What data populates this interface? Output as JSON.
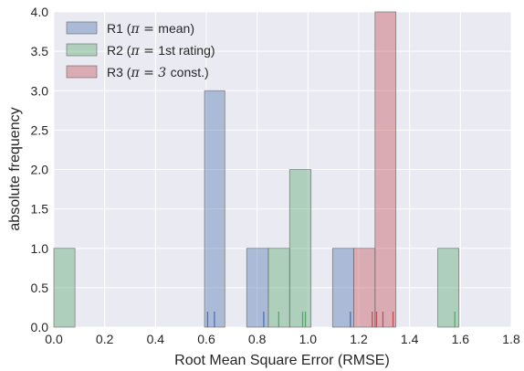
{
  "chart_data": {
    "type": "bar",
    "subtype": "histogram",
    "xlabel": "Root Mean Square Error (RMSE)",
    "ylabel": "absolute frequency",
    "xlim": [
      0.0,
      1.8
    ],
    "ylim": [
      0.0,
      4.0
    ],
    "xticks": [
      "0.0",
      "0.2",
      "0.4",
      "0.6",
      "0.8",
      "1.0",
      "1.2",
      "1.4",
      "1.6",
      "1.8"
    ],
    "yticks": [
      "0.0",
      "0.5",
      "1.0",
      "1.5",
      "2.0",
      "2.5",
      "3.0",
      "3.5",
      "4.0"
    ],
    "grid": true,
    "legend_position": "top-left",
    "series": [
      {
        "name": "R1",
        "legend_prefix": "R1 (",
        "legend_math": "π = ",
        "legend_rest": "mean)",
        "color": "#4c72b0",
        "bins": [
          {
            "x0": 0.593,
            "x1": 0.673,
            "count": 3
          },
          {
            "x0": 0.759,
            "x1": 0.844,
            "count": 1
          },
          {
            "x0": 1.097,
            "x1": 1.18,
            "count": 1
          }
        ],
        "rug": [
          0.605,
          0.632,
          0.826,
          1.167
        ]
      },
      {
        "name": "R2",
        "legend_prefix": "R2 (",
        "legend_math": "π = ",
        "legend_rest": "1st rating)",
        "color": "#55a868",
        "bins": [
          {
            "x0": 0.0,
            "x1": 0.083,
            "count": 1
          },
          {
            "x0": 0.844,
            "x1": 0.928,
            "count": 1
          },
          {
            "x0": 0.928,
            "x1": 1.012,
            "count": 2
          },
          {
            "x0": 1.511,
            "x1": 1.594,
            "count": 1
          }
        ],
        "rug": [
          0.885,
          0.979,
          0.99,
          1.578
        ]
      },
      {
        "name": "R3",
        "legend_prefix": "R3 (",
        "legend_math": "π = 3 ",
        "legend_rest": "const.)",
        "color": "#c44e52",
        "bins": [
          {
            "x0": 1.18,
            "x1": 1.264,
            "count": 1
          },
          {
            "x0": 1.264,
            "x1": 1.346,
            "count": 4
          }
        ],
        "rug": [
          1.253,
          1.27,
          1.295,
          1.335
        ]
      }
    ]
  }
}
